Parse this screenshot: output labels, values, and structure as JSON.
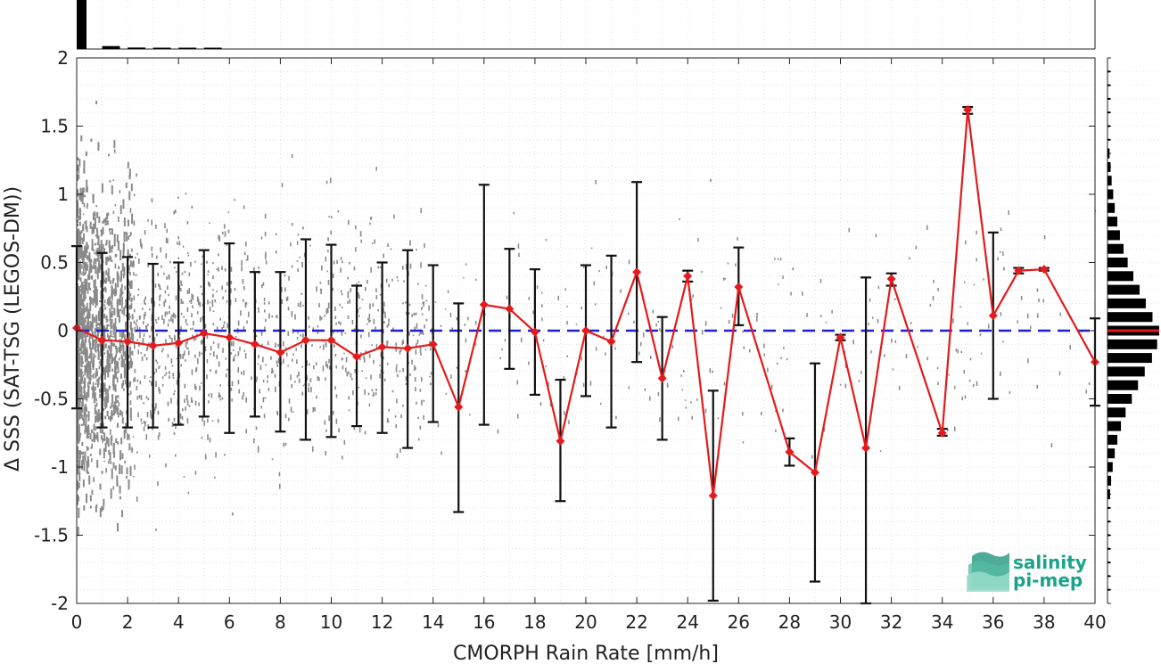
{
  "chart_data": {
    "type": "scatter",
    "xlabel": "CMORPH Rain Rate [mm/h]",
    "ylabel": "Δ SSS (SAT-TSG (LEGOS-DM))",
    "xlim": [
      0,
      40
    ],
    "ylim": [
      -2,
      2
    ],
    "x_ticks": [
      "0",
      "2",
      "4",
      "6",
      "8",
      "10",
      "12",
      "14",
      "16",
      "18",
      "20",
      "22",
      "24",
      "26",
      "28",
      "30",
      "32",
      "34",
      "36",
      "38",
      "40"
    ],
    "y_ticks": [
      "2",
      "1.5",
      "1",
      "0.5",
      "0",
      "-0.5",
      "-1",
      "-1.5",
      "-2"
    ],
    "grid": true,
    "zero_line": {
      "y": 0,
      "color": "#1f1fd6",
      "style": "dashed"
    },
    "mean_series": {
      "color": "#e41a1c",
      "marker": "diamond",
      "points": [
        {
          "x": 0,
          "y": 0.02,
          "lo": -0.57,
          "hi": 0.62
        },
        {
          "x": 1,
          "y": -0.07,
          "lo": -0.71,
          "hi": 0.57
        },
        {
          "x": 2,
          "y": -0.08,
          "lo": -0.71,
          "hi": 0.54
        },
        {
          "x": 3,
          "y": -0.11,
          "lo": -0.71,
          "hi": 0.49
        },
        {
          "x": 4,
          "y": -0.09,
          "lo": -0.69,
          "hi": 0.5
        },
        {
          "x": 5,
          "y": -0.02,
          "lo": -0.63,
          "hi": 0.59
        },
        {
          "x": 6,
          "y": -0.05,
          "lo": -0.75,
          "hi": 0.64
        },
        {
          "x": 7,
          "y": -0.1,
          "lo": -0.63,
          "hi": 0.43
        },
        {
          "x": 8,
          "y": -0.16,
          "lo": -0.74,
          "hi": 0.43
        },
        {
          "x": 9,
          "y": -0.07,
          "lo": -0.8,
          "hi": 0.67
        },
        {
          "x": 10,
          "y": -0.07,
          "lo": -0.78,
          "hi": 0.63
        },
        {
          "x": 11,
          "y": -0.19,
          "lo": -0.7,
          "hi": 0.33
        },
        {
          "x": 12,
          "y": -0.12,
          "lo": -0.75,
          "hi": 0.5
        },
        {
          "x": 13,
          "y": -0.13,
          "lo": -0.86,
          "hi": 0.59
        },
        {
          "x": 14,
          "y": -0.1,
          "lo": -0.67,
          "hi": 0.48
        },
        {
          "x": 15,
          "y": -0.56,
          "lo": -1.33,
          "hi": 0.2
        },
        {
          "x": 16,
          "y": 0.19,
          "lo": -0.69,
          "hi": 1.07
        },
        {
          "x": 17,
          "y": 0.16,
          "lo": -0.28,
          "hi": 0.6
        },
        {
          "x": 18,
          "y": -0.01,
          "lo": -0.47,
          "hi": 0.45
        },
        {
          "x": 19,
          "y": -0.81,
          "lo": -1.25,
          "hi": -0.36
        },
        {
          "x": 20,
          "y": 0.0,
          "lo": -0.48,
          "hi": 0.48
        },
        {
          "x": 21,
          "y": -0.08,
          "lo": -0.71,
          "hi": 0.55
        },
        {
          "x": 22,
          "y": 0.43,
          "lo": -0.23,
          "hi": 1.09
        },
        {
          "x": 23,
          "y": -0.35,
          "lo": -0.8,
          "hi": 0.1
        },
        {
          "x": 24,
          "y": 0.4,
          "lo": 0.36,
          "hi": 0.44
        },
        {
          "x": 25,
          "y": -1.21,
          "lo": -1.98,
          "hi": -0.44
        },
        {
          "x": 26,
          "y": 0.32,
          "lo": 0.04,
          "hi": 0.61
        },
        {
          "x": 28,
          "y": -0.89,
          "lo": -0.99,
          "hi": -0.79
        },
        {
          "x": 29,
          "y": -1.04,
          "lo": -1.84,
          "hi": -0.24
        },
        {
          "x": 30,
          "y": -0.05,
          "lo": -0.07,
          "hi": -0.03
        },
        {
          "x": 31,
          "y": -0.86,
          "lo": -2.0,
          "hi": 0.39
        },
        {
          "x": 32,
          "y": 0.38,
          "lo": 0.33,
          "hi": 0.42
        },
        {
          "x": 34,
          "y": -0.75,
          "lo": -0.77,
          "hi": -0.72
        },
        {
          "x": 35,
          "y": 1.62,
          "lo": 1.59,
          "hi": 1.64
        },
        {
          "x": 36,
          "y": 0.11,
          "lo": -0.5,
          "hi": 0.72
        },
        {
          "x": 37,
          "y": 0.44,
          "lo": 0.42,
          "hi": 0.46
        },
        {
          "x": 38,
          "y": 0.45,
          "lo": 0.44,
          "hi": 0.46
        },
        {
          "x": 40,
          "y": -0.23,
          "lo": -0.55,
          "hi": 0.09
        }
      ]
    },
    "scatter_color": "#8a8a8a",
    "top_histogram": {
      "color": "#000000",
      "bins_x": [
        0.0,
        1.0,
        2.0,
        3.0,
        4.0,
        5.0
      ],
      "relative_counts": [
        1.0,
        0.06,
        0.03,
        0.02,
        0.015,
        0.01
      ]
    },
    "right_histogram": {
      "color": "#000000",
      "mean_marker_color": "#e41a1c",
      "bins_y": [
        1.3,
        1.2,
        1.1,
        1.0,
        0.9,
        0.8,
        0.7,
        0.6,
        0.5,
        0.4,
        0.3,
        0.2,
        0.1,
        0.0,
        -0.1,
        -0.2,
        -0.3,
        -0.4,
        -0.5,
        -0.6,
        -0.7,
        -0.8,
        -0.9,
        -1.0,
        -1.1,
        -1.2
      ],
      "relative_counts": [
        0.04,
        0.06,
        0.08,
        0.11,
        0.14,
        0.19,
        0.24,
        0.31,
        0.39,
        0.5,
        0.62,
        0.74,
        0.87,
        1.0,
        0.96,
        0.86,
        0.72,
        0.59,
        0.47,
        0.35,
        0.26,
        0.19,
        0.14,
        0.1,
        0.07,
        0.05
      ]
    }
  },
  "logo": {
    "line1": "salinity",
    "line2": "pi-mep",
    "color": "#1aa38a"
  }
}
